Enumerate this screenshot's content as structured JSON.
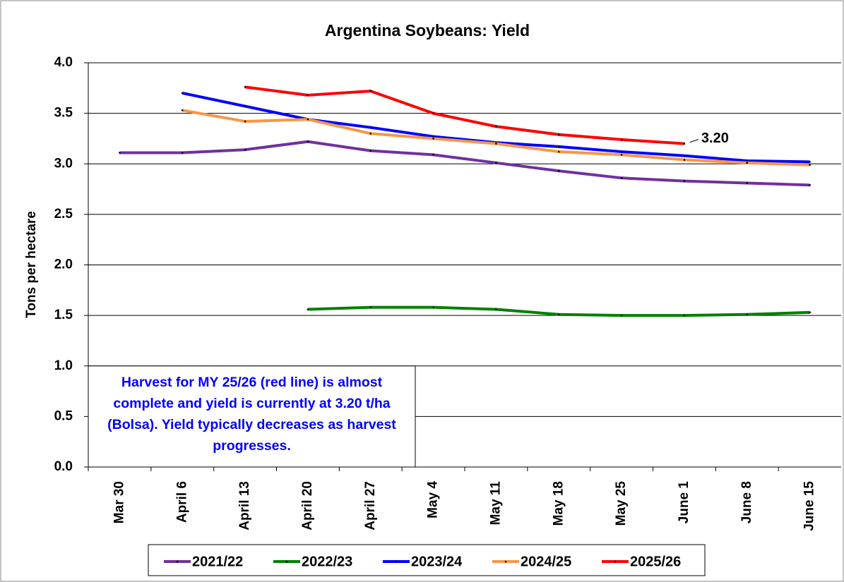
{
  "chart_data": {
    "type": "line",
    "title": "Argentina Soybeans: Yield",
    "y_label": "Tons per hectare",
    "annotation": "Harvest for MY 25/26 (red line) is almost complete and yield is currently at 3.20 t/ha (Bolsa). Yield typically decreases as harvest progresses.",
    "categories": [
      "Mar 30",
      "April 6",
      "April 13",
      "April 20",
      "April 27",
      "May 4",
      "May 11",
      "May 18",
      "May 25",
      "June 1",
      "June 8",
      "June 15"
    ],
    "series": [
      {
        "name": "2021/22",
        "color": "#7030a0",
        "values": [
          3.11,
          3.11,
          3.14,
          3.22,
          3.13,
          3.09,
          3.01,
          2.93,
          2.86,
          2.83,
          2.81,
          2.79
        ]
      },
      {
        "name": "2022/23",
        "color": "#008000",
        "values": [
          null,
          null,
          null,
          1.56,
          1.58,
          1.58,
          1.56,
          1.51,
          1.5,
          1.5,
          1.51,
          1.53
        ]
      },
      {
        "name": "2023/24",
        "color": "#0000ff",
        "values": [
          null,
          3.7,
          3.57,
          3.44,
          3.36,
          3.27,
          3.21,
          3.17,
          3.12,
          3.08,
          3.03,
          3.02
        ]
      },
      {
        "name": "2024/25",
        "color": "#f79646",
        "values": [
          null,
          3.53,
          3.42,
          3.44,
          3.3,
          3.25,
          3.2,
          3.12,
          3.09,
          3.04,
          3.01,
          2.99
        ]
      },
      {
        "name": "2025/26",
        "color": "#ff0000",
        "values": [
          null,
          null,
          3.76,
          3.68,
          3.72,
          3.5,
          3.37,
          3.29,
          3.24,
          3.2,
          null,
          null
        ],
        "value_labels": [
          null,
          null,
          null,
          null,
          null,
          null,
          null,
          null,
          null,
          "3.20",
          null,
          null
        ]
      }
    ],
    "ylim": [
      0,
      4
    ],
    "yticks": [
      {
        "value": 0,
        "label": "0.0"
      },
      0.5,
      {
        "value": 1,
        "label": "1.0"
      },
      1.5,
      {
        "value": 2,
        "label": "2.0"
      },
      2.5,
      {
        "value": 3,
        "label": "3.0"
      },
      3.5,
      {
        "value": 4,
        "label": "4.0"
      }
    ],
    "grid": true,
    "legend": "bottom"
  }
}
